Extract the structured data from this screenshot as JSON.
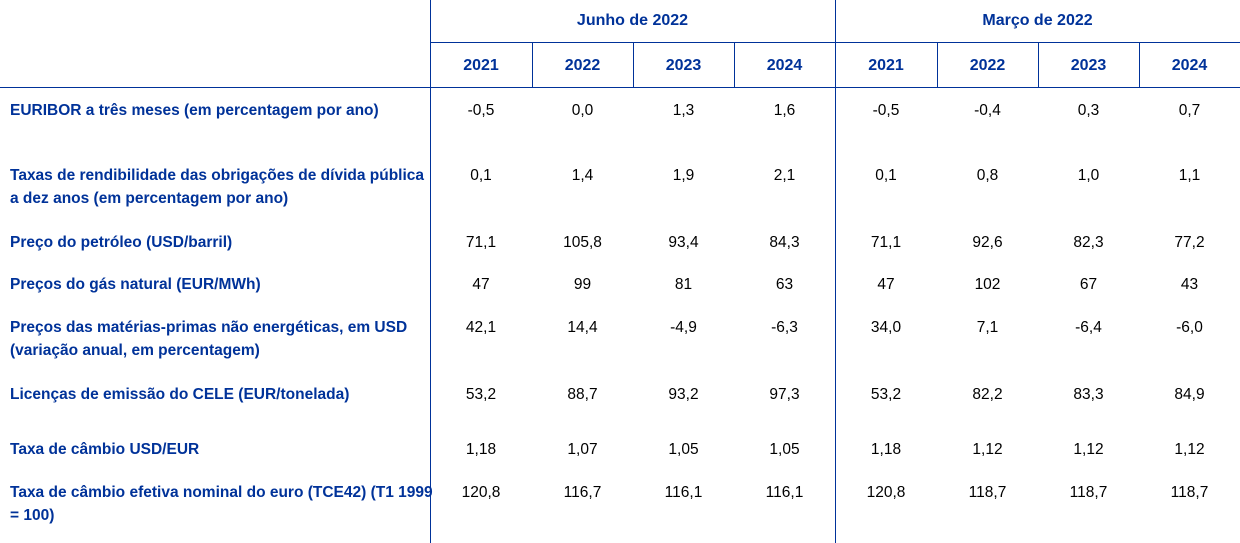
{
  "header": {
    "groups": [
      "Junho de 2022",
      "Março de 2022"
    ],
    "years": [
      [
        "2021",
        "2022",
        "2023",
        "2024"
      ],
      [
        "2021",
        "2022",
        "2023",
        "2024"
      ]
    ]
  },
  "table": {
    "rows": [
      {
        "label": "EURIBOR a três meses (em percentagem por ano)",
        "values": [
          "-0,5",
          "0,0",
          "1,3",
          "1,6",
          "-0,5",
          "-0,4",
          "0,3",
          "0,7"
        ]
      },
      {
        "label": "Taxas de rendibilidade das obrigações de dívida pública a dez anos (em percentagem por ano)",
        "values": [
          "0,1",
          "1,4",
          "1,9",
          "2,1",
          "0,1",
          "0,8",
          "1,0",
          "1,1"
        ]
      },
      {
        "label": "Preço do petróleo (USD/barril)",
        "values": [
          "71,1",
          "105,8",
          "93,4",
          "84,3",
          "71,1",
          "92,6",
          "82,3",
          "77,2"
        ]
      },
      {
        "label": "Preços do gás natural (EUR/MWh)",
        "values": [
          "47",
          "99",
          "81",
          "63",
          "47",
          "102",
          "67",
          "43"
        ]
      },
      {
        "label": "Preços das matérias-primas não energéticas, em USD (variação anual, em percentagem)",
        "values": [
          "42,1",
          "14,4",
          "-4,9",
          "-6,3",
          "34,0",
          "7,1",
          "-6,4",
          "-6,0"
        ]
      },
      {
        "label": "Licenças de emissão do CELE (EUR/tonelada)",
        "values": [
          "53,2",
          "88,7",
          "93,2",
          "97,3",
          "53,2",
          "82,2",
          "83,3",
          "84,9"
        ]
      },
      {
        "label": "Taxa de câmbio USD/EUR",
        "values": [
          "1,18",
          "1,07",
          "1,05",
          "1,05",
          "1,18",
          "1,12",
          "1,12",
          "1,12"
        ]
      },
      {
        "label": "Taxa de câmbio efetiva nominal do euro (TCE42) (T1 1999 = 100)",
        "values": [
          "120,8",
          "116,7",
          "116,1",
          "116,1",
          "120,8",
          "118,7",
          "118,7",
          "118,7"
        ]
      }
    ]
  }
}
